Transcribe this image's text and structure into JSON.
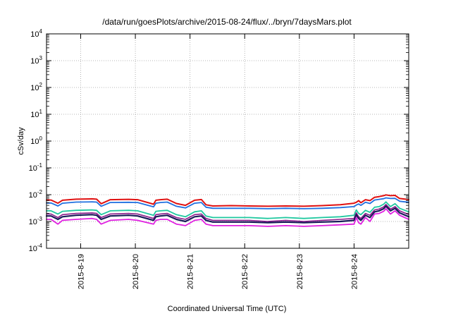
{
  "chart_data": {
    "type": "line",
    "title": "/data/run/goesPlots/archive/2015-08-24/flux/../bryn/7daysMars.plot",
    "xlabel": "Coordinated Universal Time (UTC)",
    "ylabel": "cSv/day",
    "y_scale": "log",
    "ylim": [
      0.0001,
      10000
    ],
    "xlim": [
      "2015-08-18 09:00",
      "2015-08-25 00:00"
    ],
    "grid": true,
    "y_tick_labels": [
      {
        "base": "10",
        "exp": "-4",
        "value": 0.0001
      },
      {
        "base": "10",
        "exp": "-3",
        "value": 0.001
      },
      {
        "base": "10",
        "exp": "-2",
        "value": 0.01
      },
      {
        "base": "10",
        "exp": "-1",
        "value": 0.1
      },
      {
        "base": "10",
        "exp": "0",
        "value": 1
      },
      {
        "base": "10",
        "exp": "1",
        "value": 10
      },
      {
        "base": "10",
        "exp": "2",
        "value": 100
      },
      {
        "base": "10",
        "exp": "3",
        "value": 1000
      },
      {
        "base": "10",
        "exp": "4",
        "value": 10000
      }
    ],
    "x_ticks": [
      {
        "label": "2015-8-19",
        "value": "2015-08-19 00:00"
      },
      {
        "label": "2015-8-20",
        "value": "2015-08-20 00:00"
      },
      {
        "label": "2015-8-21",
        "value": "2015-08-21 00:00"
      },
      {
        "label": "2015-8-22",
        "value": "2015-08-22 00:00"
      },
      {
        "label": "2015-8-23",
        "value": "2015-08-23 00:00"
      },
      {
        "label": "2015-8-24",
        "value": "2015-08-24 00:00"
      }
    ],
    "x": [
      "2015-08-18 09:00",
      "2015-08-18 11:00",
      "2015-08-18 14:00",
      "2015-08-18 16:00",
      "2015-08-18 22:00",
      "2015-08-19 05:00",
      "2015-08-19 07:00",
      "2015-08-19 09:00",
      "2015-08-19 13:00",
      "2015-08-19 21:00",
      "2015-08-20 01:00",
      "2015-08-20 08:00",
      "2015-08-20 09:00",
      "2015-08-20 11:00",
      "2015-08-20 14:00",
      "2015-08-20 18:00",
      "2015-08-20 22:00",
      "2015-08-21 02:00",
      "2015-08-21 05:00",
      "2015-08-21 07:00",
      "2015-08-21 10:00",
      "2015-08-21 18:00",
      "2015-08-22 02:00",
      "2015-08-22 10:00",
      "2015-08-22 18:00",
      "2015-08-23 02:00",
      "2015-08-23 10:00",
      "2015-08-23 18:00",
      "2015-08-24 00:00",
      "2015-08-24 01:00",
      "2015-08-24 02:00",
      "2015-08-24 03:00",
      "2015-08-24 05:00",
      "2015-08-24 07:00",
      "2015-08-24 09:00",
      "2015-08-24 11:00",
      "2015-08-24 13:00",
      "2015-08-24 14:00",
      "2015-08-24 16:00",
      "2015-08-24 18:00",
      "2015-08-24 20:00",
      "2015-08-25 00:00"
    ],
    "series": [
      {
        "color": "#e01010",
        "width": 2.0,
        "values": [
          0.0063,
          0.0063,
          0.0048,
          0.0062,
          0.0068,
          0.007,
          0.0068,
          0.0046,
          0.0065,
          0.0067,
          0.0065,
          0.0044,
          0.0062,
          0.0065,
          0.0068,
          0.0047,
          0.004,
          0.0062,
          0.0066,
          0.0042,
          0.0038,
          0.0039,
          0.0038,
          0.0037,
          0.0038,
          0.0037,
          0.0039,
          0.0042,
          0.0048,
          0.0052,
          0.006,
          0.005,
          0.0065,
          0.006,
          0.008,
          0.0085,
          0.0092,
          0.0098,
          0.0092,
          0.0094,
          0.0072,
          0.0066
        ]
      },
      {
        "color": "#2070e0",
        "width": 1.8,
        "values": [
          0.0049,
          0.0049,
          0.0038,
          0.0048,
          0.0053,
          0.0054,
          0.0053,
          0.0037,
          0.0051,
          0.0052,
          0.0051,
          0.0035,
          0.0048,
          0.0051,
          0.0053,
          0.0037,
          0.0032,
          0.0048,
          0.0051,
          0.0034,
          0.0031,
          0.0031,
          0.0031,
          0.003,
          0.0031,
          0.003,
          0.0031,
          0.0033,
          0.0036,
          0.0041,
          0.0045,
          0.004,
          0.0052,
          0.0047,
          0.0063,
          0.0067,
          0.0071,
          0.0076,
          0.0072,
          0.0073,
          0.0057,
          0.0052
        ]
      },
      {
        "color": "#20c8a0",
        "width": 1.8,
        "values": [
          0.0025,
          0.0025,
          0.0019,
          0.0024,
          0.0026,
          0.0027,
          0.0026,
          0.0018,
          0.0025,
          0.0026,
          0.0025,
          0.0017,
          0.0024,
          0.0025,
          0.0026,
          0.0018,
          0.0015,
          0.0023,
          0.0025,
          0.0016,
          0.0014,
          0.0014,
          0.0014,
          0.0013,
          0.0014,
          0.0013,
          0.0014,
          0.0015,
          0.0017,
          0.0027,
          0.002,
          0.0018,
          0.0026,
          0.0022,
          0.0034,
          0.0036,
          0.0044,
          0.0054,
          0.0036,
          0.0046,
          0.0031,
          0.0023
        ]
      },
      {
        "color": "#8a1a8a",
        "width": 1.6,
        "values": [
          0.0019,
          0.0019,
          0.0014,
          0.0018,
          0.002,
          0.0021,
          0.002,
          0.0014,
          0.0019,
          0.002,
          0.0019,
          0.0013,
          0.0018,
          0.0019,
          0.002,
          0.0014,
          0.0012,
          0.0018,
          0.0019,
          0.0013,
          0.0011,
          0.0011,
          0.0011,
          0.001,
          0.0011,
          0.001,
          0.0011,
          0.0012,
          0.0013,
          0.0021,
          0.0015,
          0.0013,
          0.002,
          0.0017,
          0.0027,
          0.0029,
          0.0035,
          0.0043,
          0.0029,
          0.0036,
          0.0025,
          0.0018
        ]
      },
      {
        "color": "#1a1a5a",
        "width": 2.2,
        "values": [
          0.0016,
          0.0016,
          0.0012,
          0.0015,
          0.0017,
          0.0018,
          0.0017,
          0.0012,
          0.0016,
          0.0017,
          0.0016,
          0.0011,
          0.0015,
          0.0016,
          0.0017,
          0.0012,
          0.001,
          0.0015,
          0.0016,
          0.0011,
          0.00095,
          0.00095,
          0.00095,
          0.0009,
          0.00095,
          0.0009,
          0.00095,
          0.001,
          0.0011,
          0.0018,
          0.0013,
          0.0011,
          0.0017,
          0.0014,
          0.0023,
          0.0025,
          0.003,
          0.0037,
          0.0025,
          0.0031,
          0.0021,
          0.0015
        ]
      },
      {
        "color": "#e020e0",
        "width": 1.8,
        "values": [
          0.0012,
          0.0012,
          0.0008,
          0.0011,
          0.0012,
          0.0013,
          0.0012,
          0.0008,
          0.0011,
          0.0012,
          0.0011,
          0.0008,
          0.0011,
          0.0012,
          0.0012,
          0.0008,
          0.0007,
          0.0011,
          0.0012,
          0.0008,
          0.0007,
          0.0007,
          0.0007,
          0.00066,
          0.0007,
          0.00066,
          0.0007,
          0.00075,
          0.0008,
          0.0014,
          0.0009,
          0.0008,
          0.0014,
          0.001,
          0.0019,
          0.002,
          0.0024,
          0.003,
          0.0019,
          0.0025,
          0.0017,
          0.0012
        ]
      }
    ]
  }
}
